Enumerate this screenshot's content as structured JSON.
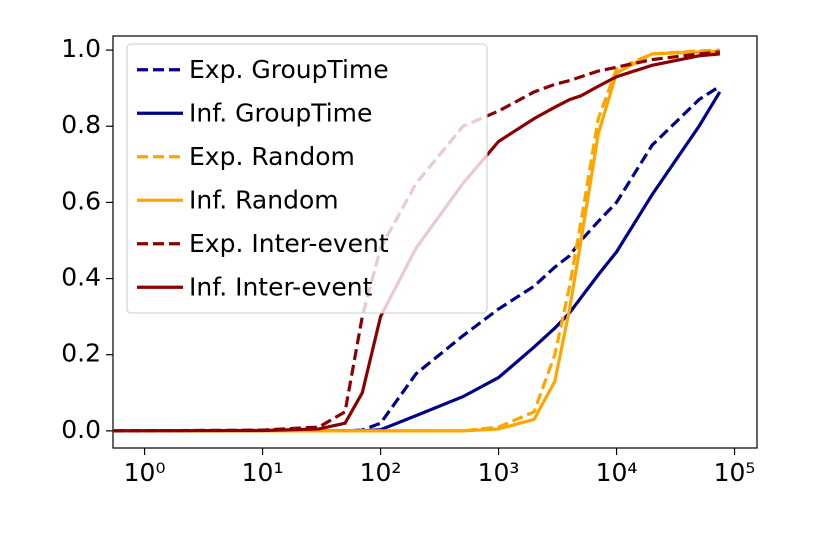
{
  "chart_data": {
    "type": "line",
    "x": [
      0.55,
      10,
      30,
      50,
      70,
      100,
      200,
      500,
      1000,
      2000,
      3000,
      4000,
      5000,
      7000,
      10000,
      20000,
      50000,
      75000
    ],
    "xscale": "log",
    "xlim": [
      0.54,
      155000
    ],
    "xticks": [
      {
        "value": 1,
        "label": "10⁰"
      },
      {
        "value": 10,
        "label": "10¹"
      },
      {
        "value": 100,
        "label": "10²"
      },
      {
        "value": 1000,
        "label": "10³"
      },
      {
        "value": 10000,
        "label": "10⁴"
      },
      {
        "value": 100000,
        "label": "10⁵"
      }
    ],
    "ylim": [
      -0.045,
      1.037
    ],
    "yticks": [
      {
        "value": 0,
        "label": "0.0"
      },
      0.2,
      0.4,
      0.6,
      0.8,
      {
        "value": 1,
        "label": "1.0"
      }
    ],
    "grid": false,
    "legend": "upper left",
    "series": [
      {
        "name": "Exp. GroupTime",
        "color": "#00008b",
        "linestyle": "dashed",
        "values": [
          0,
          0,
          0,
          0,
          0.002,
          0.02,
          0.15,
          0.25,
          0.32,
          0.38,
          0.43,
          0.46,
          0.5,
          0.55,
          0.6,
          0.75,
          0.87,
          0.905
        ]
      },
      {
        "name": "Inf. GroupTime",
        "color": "#00008b",
        "linestyle": "solid",
        "values": [
          0,
          0,
          0,
          0,
          0,
          0.003,
          0.04,
          0.09,
          0.14,
          0.22,
          0.27,
          0.31,
          0.35,
          0.41,
          0.47,
          0.62,
          0.8,
          0.89
        ]
      },
      {
        "name": "Exp. Random",
        "color": "#ffa500",
        "linestyle": "dashed",
        "values": [
          0,
          0,
          0,
          0,
          0,
          0,
          0,
          0,
          0.01,
          0.05,
          0.2,
          0.38,
          0.55,
          0.82,
          0.95,
          0.99,
          0.998,
          1.0
        ]
      },
      {
        "name": "Inf. Random",
        "color": "#ffa500",
        "linestyle": "solid",
        "values": [
          0,
          0,
          0,
          0,
          0,
          0,
          0,
          0,
          0.005,
          0.03,
          0.13,
          0.32,
          0.5,
          0.78,
          0.94,
          0.99,
          0.995,
          0.997
        ]
      },
      {
        "name": "Exp. Inter-event",
        "color": "#8b0000",
        "linestyle": "dashed",
        "values": [
          0,
          0.002,
          0.01,
          0.05,
          0.3,
          0.48,
          0.65,
          0.8,
          0.84,
          0.89,
          0.91,
          0.92,
          0.93,
          0.945,
          0.955,
          0.975,
          0.99,
          0.995
        ]
      },
      {
        "name": "Inf. Inter-event",
        "color": "#8b0000",
        "linestyle": "solid",
        "values": [
          0,
          0.001,
          0.005,
          0.02,
          0.1,
          0.3,
          0.48,
          0.65,
          0.76,
          0.82,
          0.85,
          0.87,
          0.88,
          0.905,
          0.93,
          0.96,
          0.985,
          0.99
        ]
      }
    ]
  }
}
